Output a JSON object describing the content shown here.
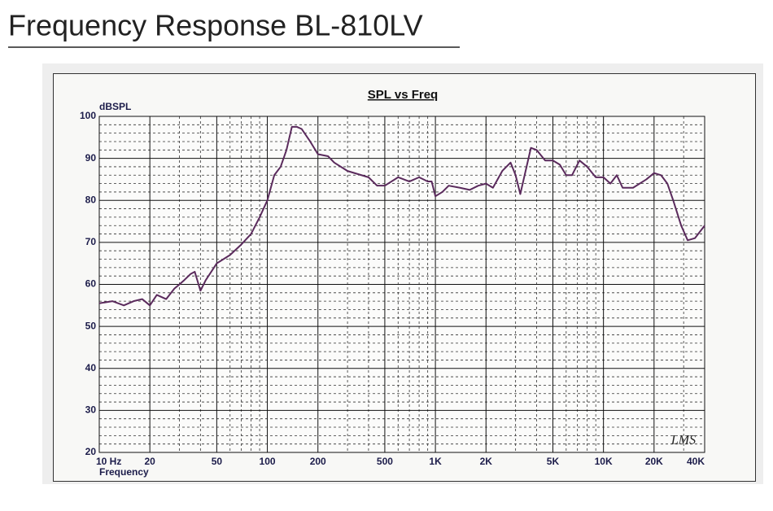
{
  "page_title": "Frequency Response BL-810LV",
  "chart_data": {
    "type": "line",
    "title": "SPL vs Freq",
    "y_label": "dBSPL",
    "x_label": "Frequency",
    "annotation": "LMS",
    "log_x": true,
    "grid": true,
    "color": "#5a2a5c",
    "xlim": [
      10,
      40000
    ],
    "ylim": [
      20,
      100
    ],
    "xticks": [
      {
        "value": 10,
        "label": "10 Hz"
      },
      20,
      50,
      100,
      200,
      500,
      {
        "value": 1000,
        "label": "1K"
      },
      {
        "value": 2000,
        "label": "2K"
      },
      {
        "value": 5000,
        "label": "5K"
      },
      {
        "value": 10000,
        "label": "10K"
      },
      {
        "value": 20000,
        "label": "20K"
      },
      {
        "value": 40000,
        "label": "40K"
      }
    ],
    "yticks": [
      20,
      30,
      40,
      50,
      60,
      70,
      80,
      90,
      100
    ],
    "minor_xgrid": [
      30,
      40,
      60,
      70,
      80,
      90,
      300,
      400,
      600,
      700,
      800,
      900,
      3000,
      4000,
      6000,
      7000,
      8000,
      9000,
      30000
    ],
    "minor_ygrid": [
      22,
      24,
      26,
      28,
      32,
      34,
      36,
      38,
      42,
      44,
      46,
      48,
      52,
      54,
      56,
      58,
      62,
      64,
      66,
      68,
      72,
      74,
      76,
      78,
      82,
      84,
      86,
      88,
      92,
      94,
      96,
      98
    ],
    "x": [
      10,
      12,
      14,
      16,
      18,
      20,
      22,
      25,
      28,
      30,
      32,
      35,
      37,
      40,
      43,
      50,
      60,
      70,
      80,
      90,
      100,
      110,
      120,
      130,
      140,
      150,
      160,
      180,
      200,
      230,
      250,
      300,
      400,
      450,
      500,
      600,
      700,
      800,
      900,
      950,
      1000,
      1100,
      1200,
      1400,
      1600,
      1800,
      2000,
      2200,
      2500,
      2800,
      3000,
      3200,
      3700,
      4000,
      4500,
      5000,
      5500,
      6000,
      6500,
      7200,
      8000,
      9000,
      10000,
      11000,
      12000,
      13000,
      15000,
      18000,
      20000,
      22000,
      24000,
      26000,
      29000,
      31700,
      35000,
      40000
    ],
    "values": [
      55.5,
      56,
      55,
      56,
      56.5,
      55,
      57.5,
      56.5,
      59,
      60,
      61,
      62.5,
      63,
      58.5,
      61,
      65,
      67,
      69.5,
      72,
      76,
      80,
      86,
      88,
      92,
      97.5,
      97.5,
      97,
      94,
      91,
      90.5,
      89,
      87,
      85.5,
      83.5,
      83.5,
      85.5,
      84.5,
      85.5,
      84.5,
      84.5,
      81,
      82,
      83.5,
      83,
      82.5,
      83.5,
      84,
      83,
      87,
      89,
      86,
      81.5,
      92.5,
      92,
      89.5,
      89.5,
      88.5,
      86,
      86,
      89.5,
      88,
      85.5,
      85.5,
      84,
      86,
      83,
      83,
      85,
      86.5,
      86,
      84,
      80,
      74,
      70.5,
      71,
      74
    ]
  }
}
